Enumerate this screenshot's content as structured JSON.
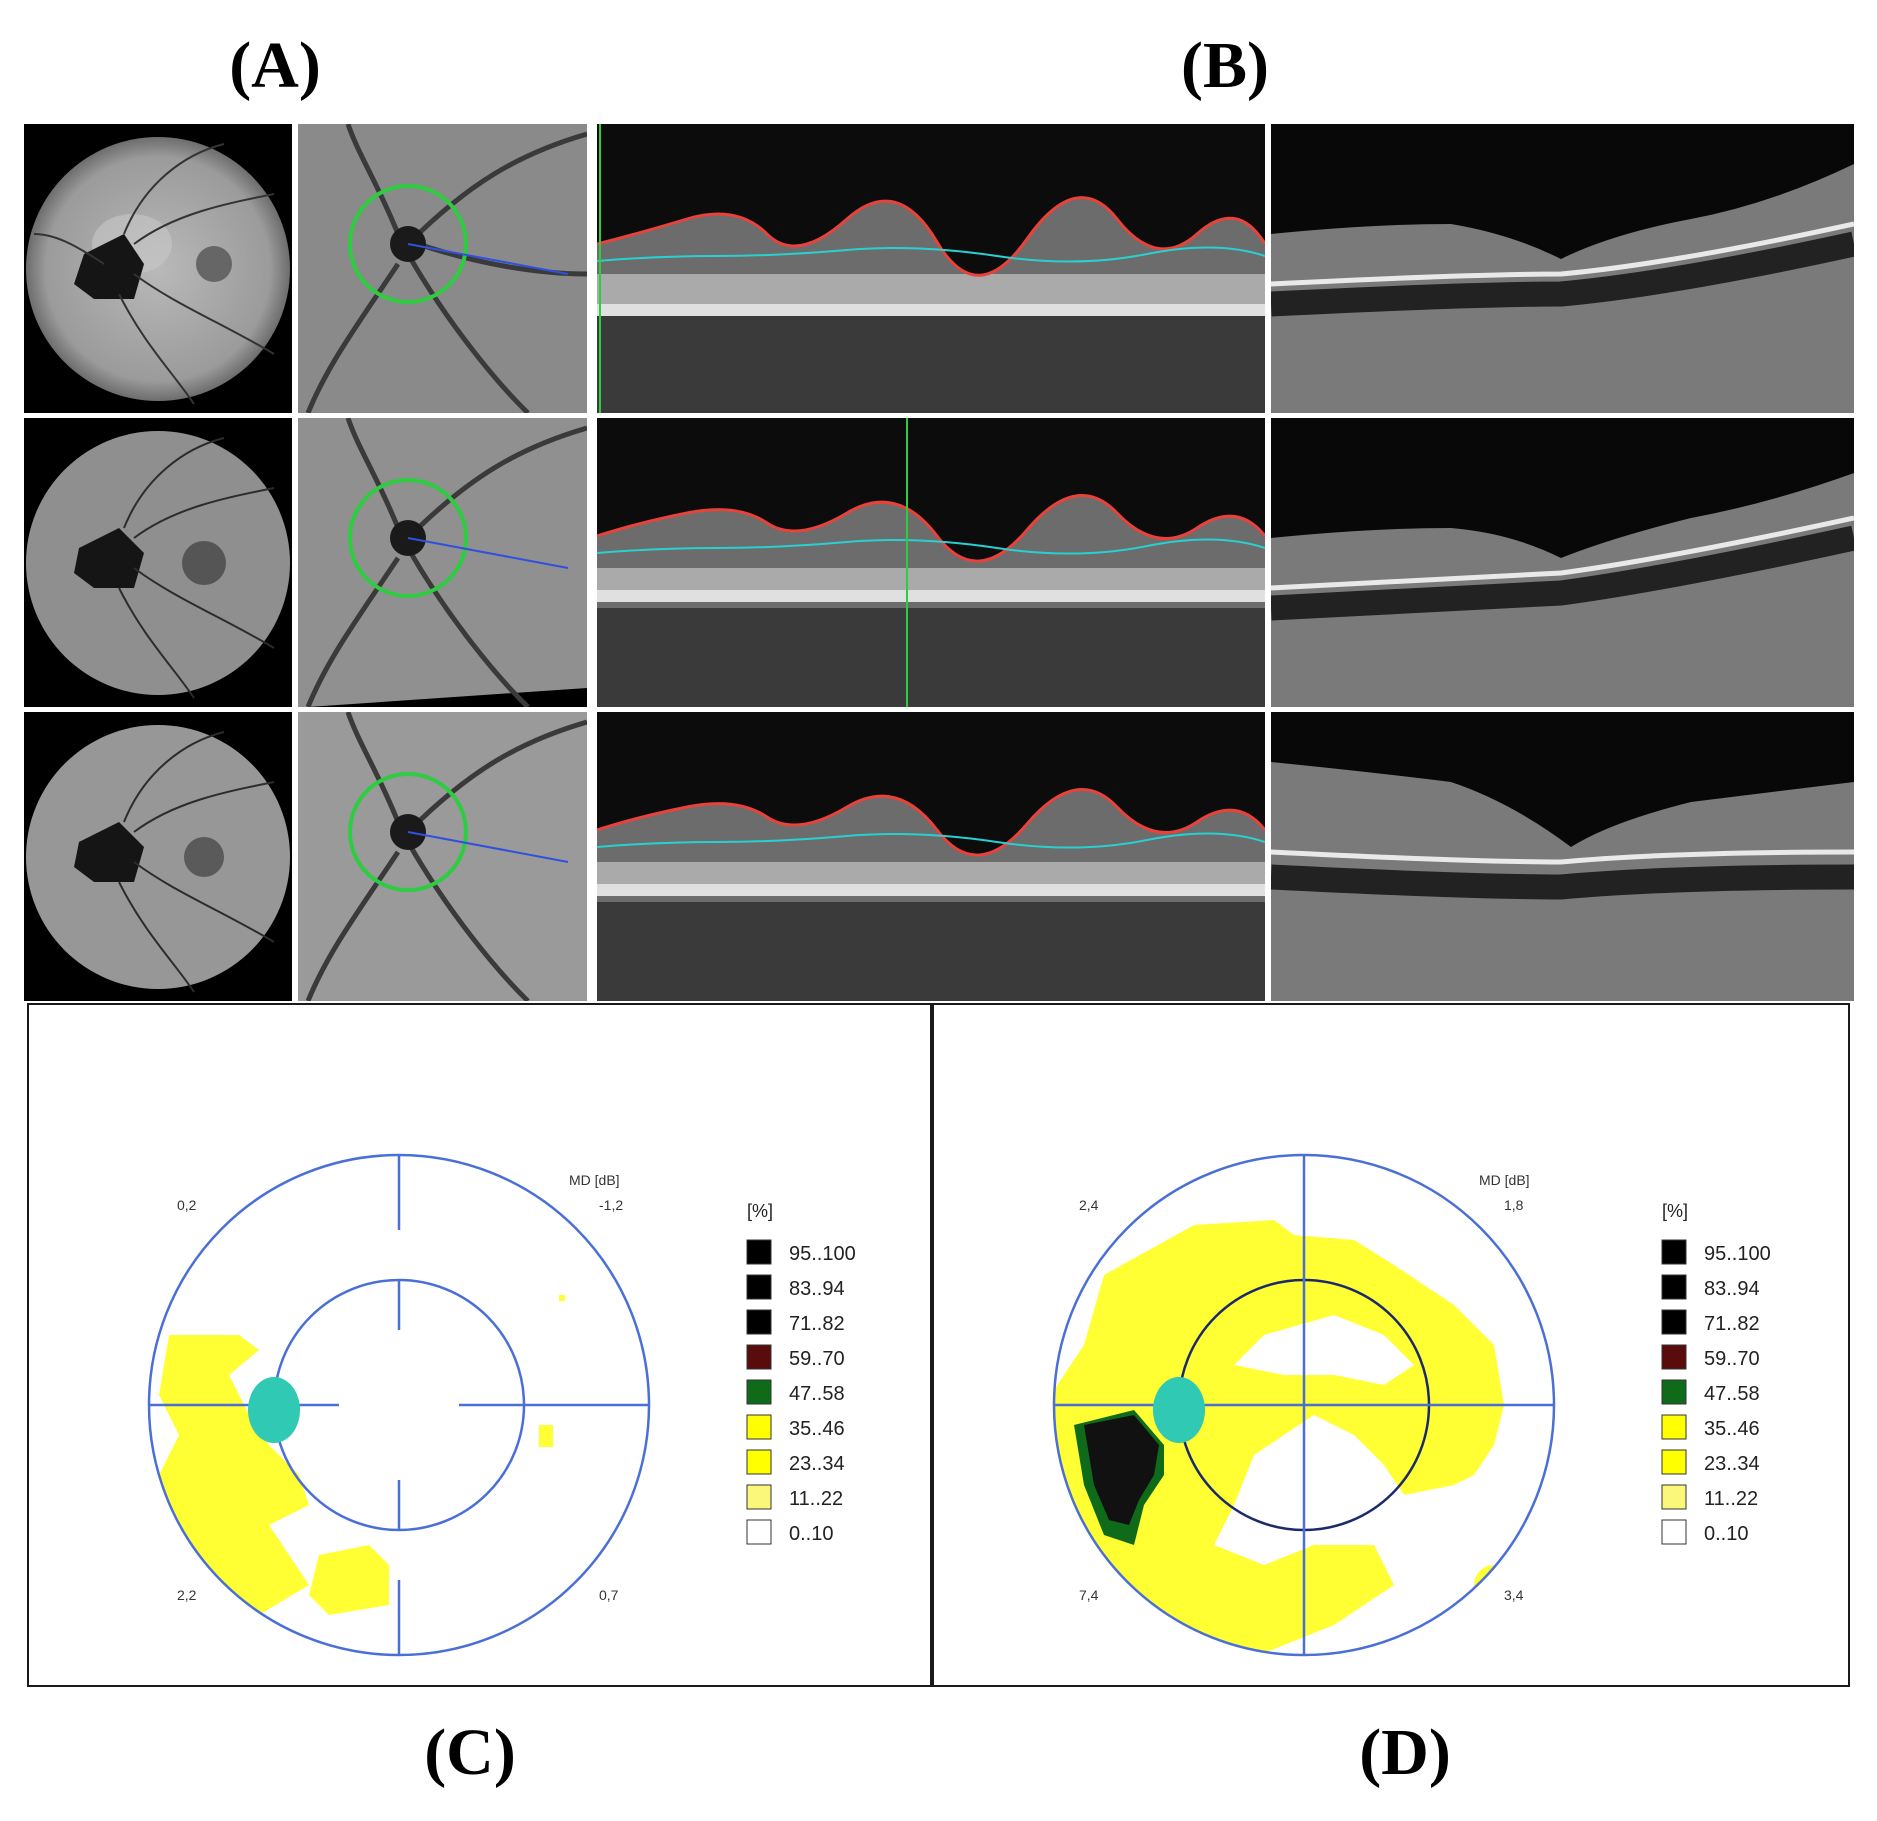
{
  "labels": {
    "A": "(A)",
    "B": "(B)",
    "C": "(C)",
    "D": "(D)"
  },
  "visual_fields": [
    {
      "id": "C",
      "axis_title": "MD [dB]",
      "quadrant_values": {
        "top_left": "0,2",
        "top_right": "-1,2",
        "bottom_left": "2,2",
        "bottom_right": "0,7"
      },
      "legend_title": "[%]",
      "legend": [
        {
          "label": "95..100",
          "color": "#000000"
        },
        {
          "label": "83..94",
          "color": "#000000"
        },
        {
          "label": "71..82",
          "color": "#000000"
        },
        {
          "label": "59..70",
          "color": "#5a0c0c"
        },
        {
          "label": "47..58",
          "color": "#0f6b1a"
        },
        {
          "label": "35..46",
          "color": "#ffff00"
        },
        {
          "label": "23..34",
          "color": "#ffff00"
        },
        {
          "label": "11..22",
          "color": "#fbf77a"
        },
        {
          "label": "0..10",
          "color": "#ffffff"
        }
      ]
    },
    {
      "id": "D",
      "axis_title": "MD [dB]",
      "quadrant_values": {
        "top_left": "2,4",
        "top_right": "1,8",
        "bottom_left": "7,4",
        "bottom_right": "3,4"
      },
      "legend_title": "[%]",
      "legend": [
        {
          "label": "95..100",
          "color": "#000000"
        },
        {
          "label": "83..94",
          "color": "#000000"
        },
        {
          "label": "71..82",
          "color": "#000000"
        },
        {
          "label": "59..70",
          "color": "#5a0c0c"
        },
        {
          "label": "47..58",
          "color": "#0f6b1a"
        },
        {
          "label": "35..46",
          "color": "#ffff00"
        },
        {
          "label": "23..34",
          "color": "#ffff00"
        },
        {
          "label": "11..22",
          "color": "#fbf77a"
        },
        {
          "label": "0..10",
          "color": "#ffffff"
        }
      ]
    }
  ],
  "colors": {
    "ring": "#4a6fd6",
    "blind_spot": "#2fc9b4",
    "scotoma_yellow": "#ffff33",
    "onh_circle": "#2ecc40",
    "ilm_line": "#e8423a",
    "rnfl_line": "#2ad0d0"
  }
}
